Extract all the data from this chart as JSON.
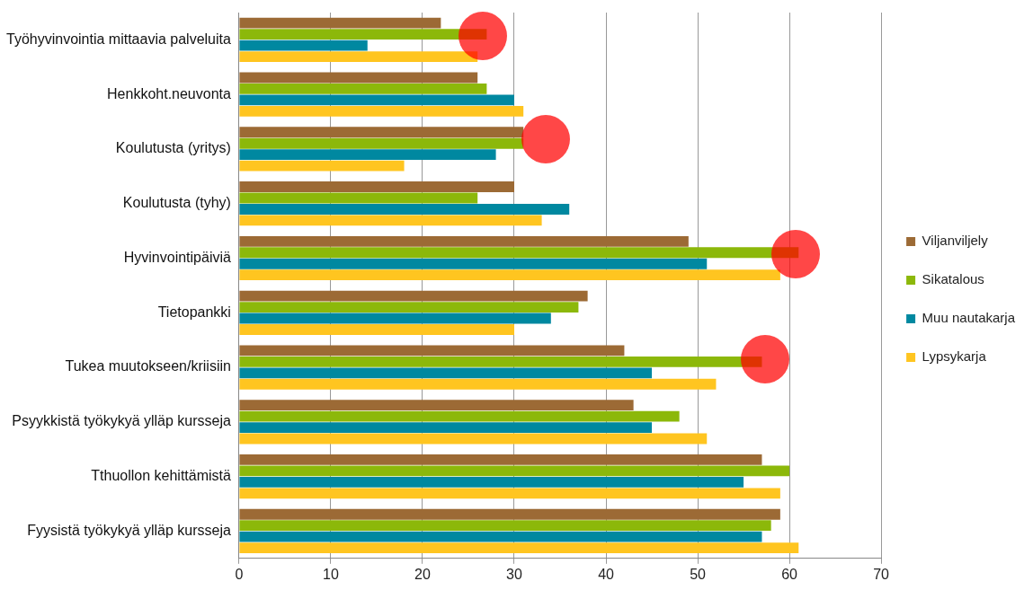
{
  "chart_data": {
    "type": "bar",
    "orientation": "horizontal",
    "categories": [
      "Työhyvinvointia mittaavia palveluita",
      "Henkkoht.neuvonta",
      "Koulutusta (yritys)",
      "Koulutusta (tyhy)",
      "Hyvinvointipäiviä",
      "Tietopankki",
      "Tukea muutokseen/kriisiin",
      "Psyykkistä työkykyä ylläp kursseja",
      "Tthuollon kehittämistä",
      "Fyysistä työkykyä ylläp kursseja"
    ],
    "series": [
      {
        "name": "Viljanviljely",
        "color": "#9c6a35",
        "values": [
          22,
          26,
          31,
          30,
          49,
          38,
          42,
          43,
          57,
          59
        ]
      },
      {
        "name": "Sikatalous",
        "color": "#8cb80a",
        "values": [
          27,
          27,
          31,
          26,
          61,
          37,
          57,
          48,
          60,
          58
        ]
      },
      {
        "name": "Muu nautakarja",
        "color": "#0088a0",
        "values": [
          14,
          30,
          28,
          36,
          51,
          34,
          45,
          45,
          55,
          57
        ]
      },
      {
        "name": "Lypsykarja",
        "color": "#ffc520",
        "values": [
          26,
          31,
          18,
          33,
          59,
          30,
          52,
          51,
          59,
          61
        ]
      }
    ],
    "xlim": [
      0,
      70
    ],
    "xticks": [
      0,
      10,
      20,
      30,
      40,
      50,
      60,
      70
    ],
    "grid": "x",
    "legend": "right"
  }
}
